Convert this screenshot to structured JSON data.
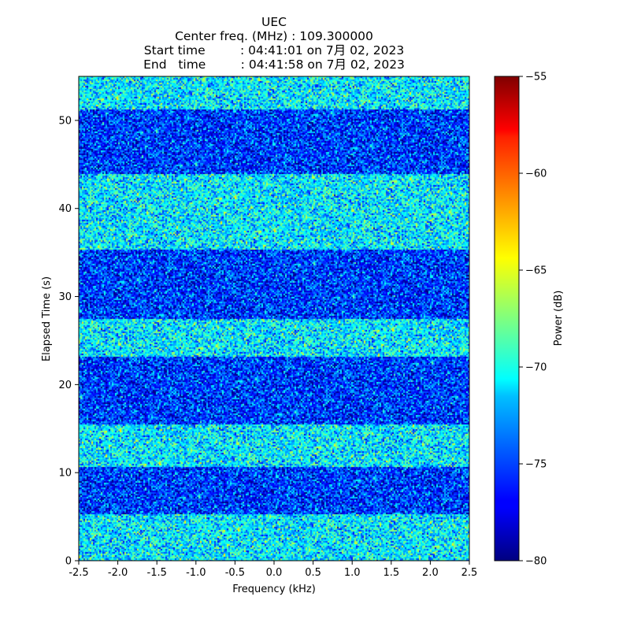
{
  "chart_data": {
    "type": "heatmap",
    "title_lines": [
      "UEC",
      "Center freq. (MHz) : 109.300000",
      "Start time         : 04:41:01 on 7月 02, 2023",
      "End   time         : 04:41:58 on 7月 02, 2023"
    ],
    "xlabel": "Frequency (kHz)",
    "ylabel": "Elapsed Time (s)",
    "xlim": [
      -2.5,
      2.5
    ],
    "ylim": [
      0,
      55
    ],
    "x_ticks": [
      "-2.5",
      "-2.0",
      "-1.5",
      "-1.0",
      "-0.5",
      "0.0",
      "0.5",
      "1.0",
      "1.5",
      "2.0",
      "2.5"
    ],
    "x_tick_values": [
      -2.5,
      -2.0,
      -1.5,
      -1.0,
      -0.5,
      0.0,
      0.5,
      1.0,
      1.5,
      2.0,
      2.5
    ],
    "y_ticks": [
      "0",
      "10",
      "20",
      "30",
      "40",
      "50"
    ],
    "y_tick_values": [
      0,
      10,
      20,
      30,
      40,
      50
    ],
    "colorbar": {
      "label": "Power (dB)",
      "range": [
        -80,
        -55
      ],
      "ticks": [
        "−55",
        "−60",
        "−65",
        "−70",
        "−75",
        "−80"
      ],
      "tick_values": [
        -55,
        -60,
        -65,
        -70,
        -75,
        -80
      ],
      "colormap": "jet"
    },
    "bands": [
      {
        "t_start": 0,
        "t_end": 5.2,
        "level": "high",
        "mean_power_db": -71
      },
      {
        "t_start": 5.2,
        "t_end": 10.6,
        "level": "low",
        "mean_power_db": -75.5
      },
      {
        "t_start": 10.6,
        "t_end": 15.4,
        "level": "high",
        "mean_power_db": -71
      },
      {
        "t_start": 15.4,
        "t_end": 23.2,
        "level": "low",
        "mean_power_db": -75.5
      },
      {
        "t_start": 23.2,
        "t_end": 27.4,
        "level": "high",
        "mean_power_db": -71
      },
      {
        "t_start": 27.4,
        "t_end": 35.4,
        "level": "low",
        "mean_power_db": -75.5
      },
      {
        "t_start": 35.4,
        "t_end": 44.0,
        "level": "high",
        "mean_power_db": -71
      },
      {
        "t_start": 44.0,
        "t_end": 51.2,
        "level": "low",
        "mean_power_db": -75.5
      },
      {
        "t_start": 51.2,
        "t_end": 55,
        "level": "high",
        "mean_power_db": -71
      }
    ],
    "noise_spread_db": 2.6
  }
}
